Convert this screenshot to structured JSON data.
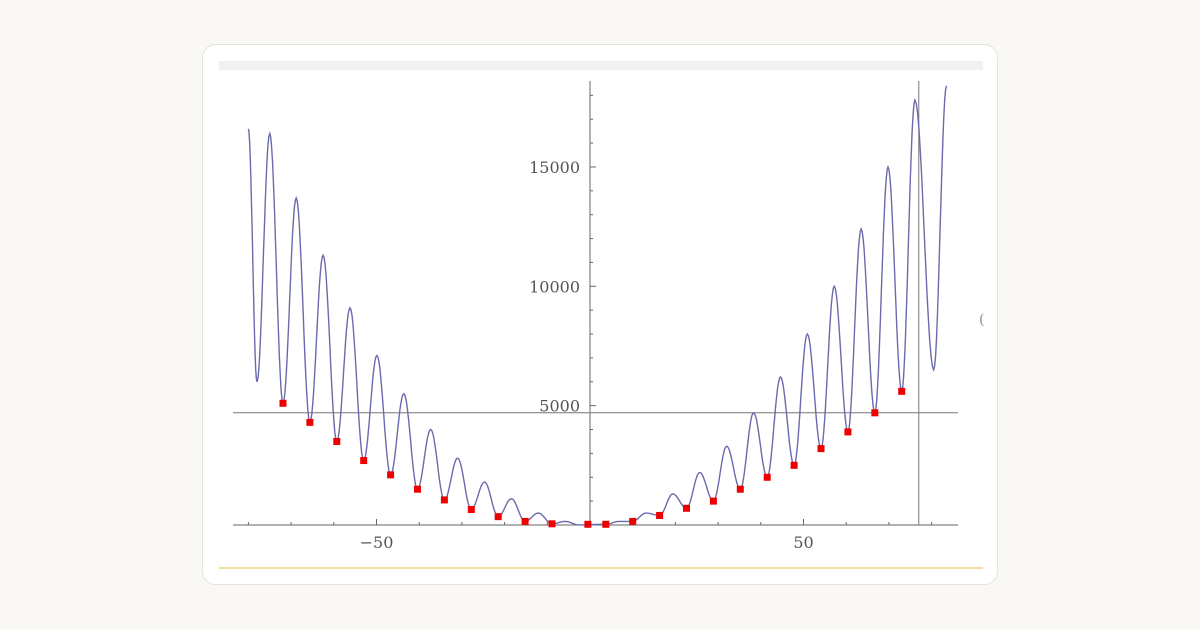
{
  "chart_data": {
    "type": "line",
    "xlabel": "",
    "ylabel": "",
    "xlim": [
      -83,
      87
    ],
    "ylim": [
      0,
      18500
    ],
    "x_ticks": [
      {
        "value": -50,
        "label": "−50"
      },
      {
        "value": 50,
        "label": "50"
      }
    ],
    "y_ticks": [
      {
        "value": 5000,
        "label": "5000"
      },
      {
        "value": 10000,
        "label": "10000"
      },
      {
        "value": 15000,
        "label": "15000"
      }
    ],
    "reference_lines": {
      "horizontal_y": 4700,
      "vertical_x": 77
    },
    "curve": {
      "note": "oscillating curve, period ~6.3, envelope grows quadratically",
      "peaks": [
        [
          -80,
          16600
        ],
        [
          -75,
          16400
        ],
        [
          -68.8,
          13700
        ],
        [
          -62.5,
          11300
        ],
        [
          -56.2,
          9100
        ],
        [
          -49.9,
          7100
        ],
        [
          -43.6,
          5500
        ],
        [
          -37.3,
          4000
        ],
        [
          -31.0,
          2800
        ],
        [
          -24.7,
          1800
        ],
        [
          -18.4,
          1100
        ],
        [
          -12.1,
          500
        ],
        [
          -5.8,
          150
        ],
        [
          6.8,
          150
        ],
        [
          13.1,
          500
        ],
        [
          19.4,
          1300
        ],
        [
          25.7,
          2200
        ],
        [
          32.0,
          3300
        ],
        [
          38.3,
          4700
        ],
        [
          44.6,
          6200
        ],
        [
          50.9,
          8000
        ],
        [
          57.2,
          10000
        ],
        [
          63.5,
          12400
        ],
        [
          69.8,
          15000
        ],
        [
          76.1,
          17800
        ],
        [
          83.5,
          18400
        ]
      ],
      "troughs": [
        [
          -78,
          6000
        ],
        [
          -71.9,
          5100
        ],
        [
          -65.6,
          4300
        ],
        [
          -59.3,
          3500
        ],
        [
          -53.0,
          2700
        ],
        [
          -46.7,
          2100
        ],
        [
          -40.4,
          1500
        ],
        [
          -34.1,
          1050
        ],
        [
          -27.8,
          650
        ],
        [
          -21.5,
          350
        ],
        [
          -15.2,
          150
        ],
        [
          -8.9,
          50
        ],
        [
          -2.6,
          5
        ],
        [
          3.7,
          30
        ],
        [
          10.0,
          150
        ],
        [
          16.3,
          400
        ],
        [
          22.6,
          700
        ],
        [
          28.9,
          1000
        ],
        [
          35.2,
          1500
        ],
        [
          41.5,
          2000
        ],
        [
          47.8,
          2500
        ],
        [
          54.1,
          3200
        ],
        [
          60.4,
          3900
        ],
        [
          66.7,
          4700
        ],
        [
          73.0,
          5600
        ],
        [
          80.5,
          6500
        ]
      ]
    },
    "points": [
      [
        -71.9,
        5100
      ],
      [
        -65.6,
        4300
      ],
      [
        -59.3,
        3500
      ],
      [
        -53.0,
        2700
      ],
      [
        -46.7,
        2100
      ],
      [
        -40.4,
        1500
      ],
      [
        -34.1,
        1050
      ],
      [
        -27.8,
        650
      ],
      [
        -21.5,
        350
      ],
      [
        -15.2,
        150
      ],
      [
        -8.9,
        50
      ],
      [
        -0.5,
        30
      ],
      [
        3.7,
        30
      ],
      [
        10.0,
        150
      ],
      [
        16.3,
        400
      ],
      [
        22.6,
        700
      ],
      [
        28.9,
        1000
      ],
      [
        35.2,
        1500
      ],
      [
        41.5,
        2000
      ],
      [
        47.8,
        2500
      ],
      [
        54.1,
        3200
      ],
      [
        60.4,
        3900
      ],
      [
        66.7,
        4700
      ],
      [
        73.0,
        5600
      ]
    ],
    "colors": {
      "curve": "#6a6aad",
      "points": "#ee0000",
      "axes": "#666666",
      "reference": "#777777"
    }
  },
  "edge_glyph": "("
}
